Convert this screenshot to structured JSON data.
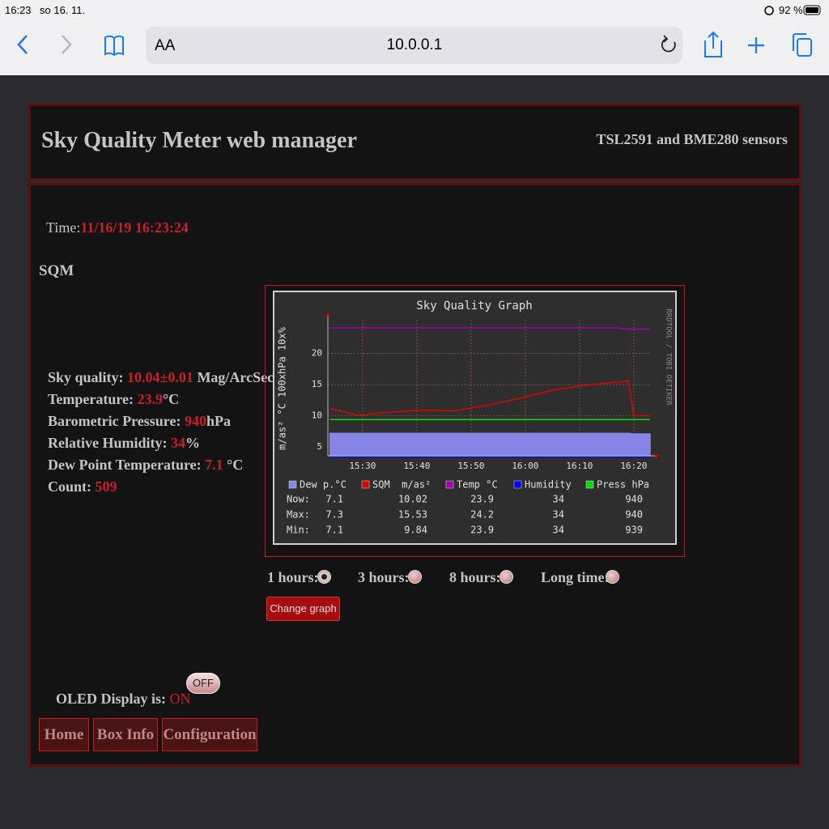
{
  "status_bar": {
    "time": "16:23",
    "date": "so 16. 11.",
    "battery": "92 %"
  },
  "browser": {
    "text_size": "AA",
    "url": "10.0.0.1"
  },
  "header": {
    "title": "Sky Quality Meter web manager",
    "subtitle": "TSL2591 and BME280 sensors"
  },
  "time": {
    "label": "Time:",
    "value": "11/16/19 16:23:24"
  },
  "section": "SQM",
  "readings": [
    {
      "label": "Sky quality: ",
      "value": "10.04±0.01",
      "unit": " Mag/ArcSec²"
    },
    {
      "label": "Temperature: ",
      "value": "23.9",
      "unit": "°C"
    },
    {
      "label": "Barometric Pressure: ",
      "value": "940",
      "unit": "hPa"
    },
    {
      "label": "Relative Humidity: ",
      "value": "34",
      "unit": "%"
    },
    {
      "label": "Dew Point Temperature: ",
      "value": "7.1",
      "unit": " °C"
    },
    {
      "label": "Count: ",
      "value": "509"
    }
  ],
  "chart_data": {
    "type": "line",
    "title": "Sky Quality Graph",
    "y_label": "m/as² °C 100xhPa 10x%",
    "credit": "RRDTOOL / TOBI OETIKER",
    "x": [
      924,
      929,
      935,
      941,
      947,
      953,
      959,
      965,
      971,
      977,
      979,
      980,
      983
    ],
    "xlim": [
      923.6,
      983.3
    ],
    "xticks": [
      {
        "value": 930,
        "label": "15:30"
      },
      {
        "value": 940,
        "label": "15:40"
      },
      {
        "value": 950,
        "label": "15:50"
      },
      {
        "value": 960,
        "label": "16:00"
      },
      {
        "value": 970,
        "label": "16:10"
      },
      {
        "value": 980,
        "label": "16:20"
      }
    ],
    "ylim": [
      3.6,
      25.4
    ],
    "yticks": [
      5,
      10,
      15,
      20
    ],
    "grid": true,
    "series": [
      {
        "name": "Dew p.°C",
        "color": "#8585e6",
        "style": "area",
        "values": [
          7.2,
          7.2,
          7.2,
          7.2,
          7.2,
          7.2,
          7.2,
          7.2,
          7.2,
          7.2,
          7.2,
          7.1,
          7.1
        ]
      },
      {
        "name": "SQM  m/as²",
        "color": "#e00000",
        "style": "line",
        "values": [
          11.2,
          10.1,
          10.6,
          10.9,
          10.8,
          11.7,
          12.8,
          14.1,
          14.9,
          15.4,
          15.6,
          10.0,
          10.0
        ]
      },
      {
        "name": "Temp °C",
        "color": "#a000b0",
        "style": "line",
        "values": [
          24.1,
          24.1,
          24.1,
          24.1,
          24.1,
          24.1,
          24.1,
          24.1,
          24.1,
          24.1,
          23.9,
          23.9,
          23.9
        ]
      },
      {
        "name": "Humidity",
        "color": "#0000ff",
        "style": "line",
        "values": [
          3.4,
          3.4,
          3.4,
          3.4,
          3.4,
          3.4,
          3.4,
          3.4,
          3.4,
          3.4,
          3.4,
          3.4,
          3.4
        ]
      },
      {
        "name": "Press hPa",
        "color": "#00dd00",
        "style": "line",
        "values": [
          9.4,
          9.4,
          9.4,
          9.4,
          9.4,
          9.4,
          9.4,
          9.4,
          9.4,
          9.4,
          9.4,
          9.4,
          9.4
        ]
      }
    ],
    "stats": [
      {
        "label": "Now:",
        "values": [
          7.1,
          10.02,
          23.9,
          34,
          940
        ]
      },
      {
        "label": "Max:",
        "values": [
          7.3,
          15.53,
          24.2,
          34,
          940
        ]
      },
      {
        "label": "Min:",
        "values": [
          7.1,
          9.84,
          23.9,
          34,
          939
        ]
      }
    ]
  },
  "radios": [
    {
      "label": "1 hours:",
      "checked": true
    },
    {
      "label": "3 hours:",
      "checked": false
    },
    {
      "label": "8 hours:",
      "checked": false
    },
    {
      "label": "Long time:",
      "checked": false
    }
  ],
  "change_button": "Change graph",
  "oled": {
    "label": "OLED Display is: ",
    "state": "ON",
    "button": "OFF"
  },
  "nav": [
    "Home",
    "Box Info",
    "Configuration"
  ]
}
